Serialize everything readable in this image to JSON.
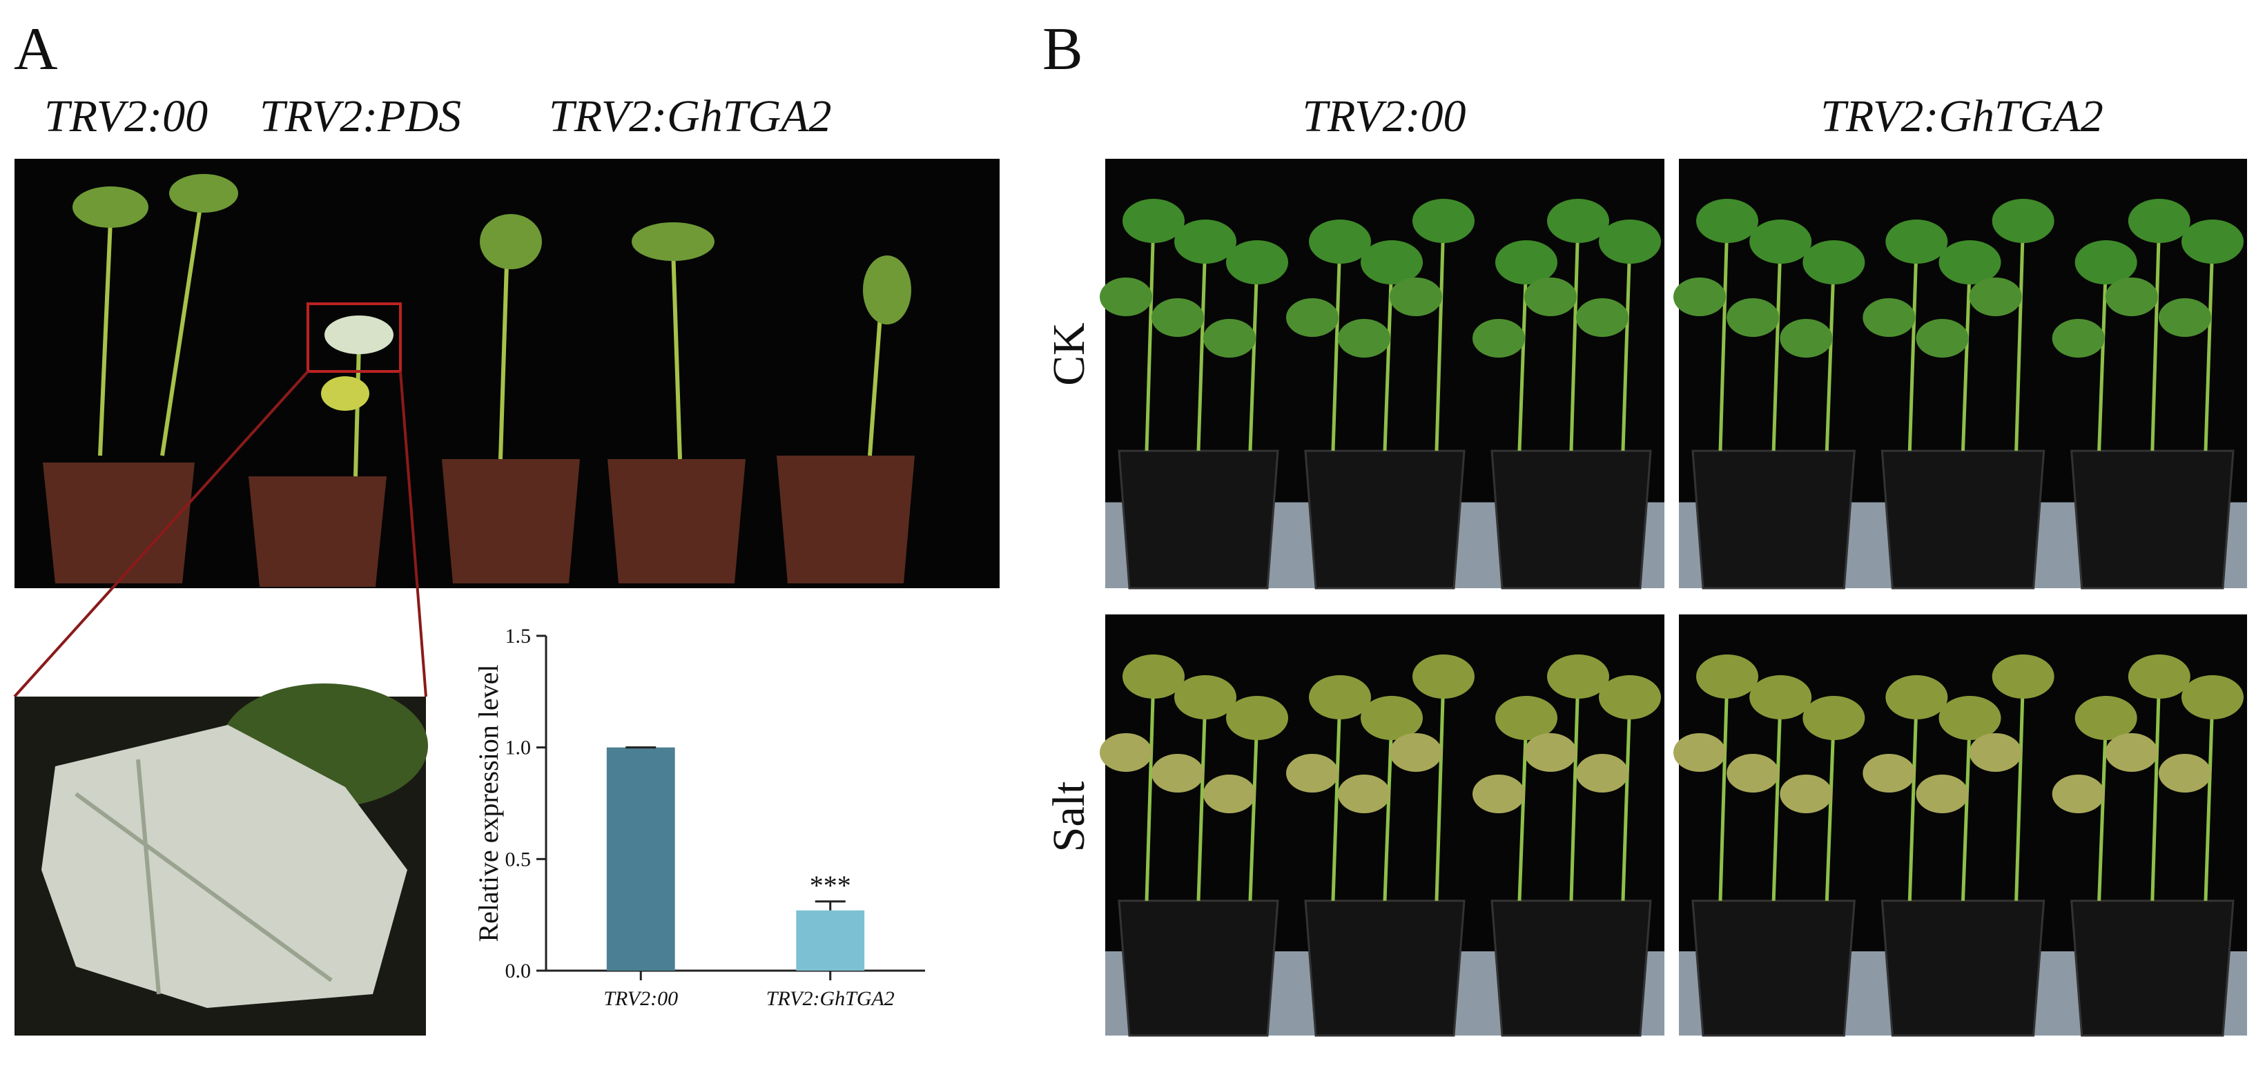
{
  "panel_a": {
    "label": "A",
    "columns": [
      "TRV2:00",
      "TRV2:PDS",
      "TRV2:GhTGA2"
    ]
  },
  "panel_b": {
    "label": "B",
    "columns": [
      "TRV2:00",
      "TRV2:GhTGA2"
    ],
    "rows": [
      "CK",
      "Salt"
    ]
  },
  "chart_data": {
    "type": "bar",
    "y_label": "Relative expression level",
    "categories": [
      "TRV2:00",
      "TRV2:GhTGA2"
    ],
    "values": [
      1.0,
      0.27
    ],
    "errors": [
      0,
      0.04
    ],
    "significance": [
      null,
      "***"
    ],
    "colors": [
      "#4b7f93",
      "#7cc0d3"
    ],
    "ylim": [
      0,
      1.5
    ],
    "yticks": [
      {
        "value": 0,
        "label": "0.0"
      },
      0.5,
      {
        "value": 1,
        "label": "1.0"
      },
      1.5
    ]
  }
}
